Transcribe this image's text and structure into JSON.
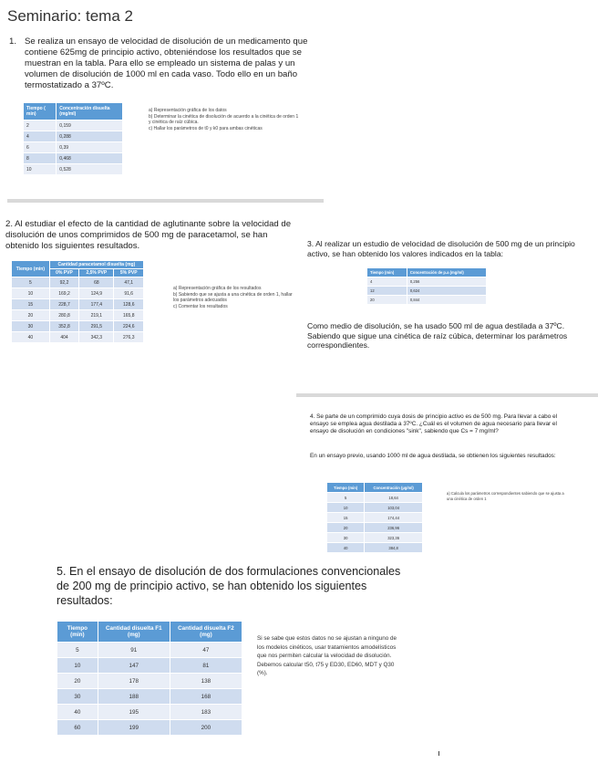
{
  "title": "Seminario: tema 2",
  "p1": {
    "number": "1.",
    "text": "Se realiza un ensayo de velocidad de disolución de un medicamento que contiene 625mg de principio activo, obteniéndose los resultados que se muestran en la tabla. Para ello se empleado un sistema de palas y un volumen de disolución de 1000 ml en cada vaso. Todo ello en un baño termostatizado a 37ºC.",
    "table": {
      "headers": [
        "Tiempo ( min)",
        "Concentración disuelta (mg/ml)"
      ],
      "rows": [
        [
          "2",
          "0,159"
        ],
        [
          "4",
          "0,288"
        ],
        [
          "6",
          "0,39"
        ],
        [
          "8",
          "0,468"
        ],
        [
          "10",
          "0,528"
        ]
      ]
    },
    "questions": [
      "a)  Representación gráfica de los datos",
      "b)  Determinar la cinética de disolución de acuerdo a la cinética de orden 1 y cinética de raíz cúbica.",
      "c)  Hallar los parámetros de t0 y k0 para ambas cinéticas"
    ]
  },
  "p2": {
    "text": "2. Al estudiar el efecto de la cantidad de aglutinante sobre la velocidad de disolución de unos comprimidos de 500 mg de paracetamol, se han obtenido los siguientes resultados.",
    "table": {
      "header_time": "Tiempo (min)",
      "header_group": "Cantidad paracetamol disuelta (mg)",
      "subheaders": [
        "0% PVP",
        "2,5% PVP",
        "5% PVP"
      ],
      "rows": [
        [
          "5",
          "92,2",
          "68",
          "47,1"
        ],
        [
          "10",
          "169,2",
          "124,9",
          "91,6"
        ],
        [
          "15",
          "228,7",
          "177,4",
          "128,6"
        ],
        [
          "20",
          "280,8",
          "219,1",
          "165,8"
        ],
        [
          "30",
          "352,8",
          "291,5",
          "224,6"
        ],
        [
          "40",
          "404",
          "342,3",
          "276,3"
        ]
      ]
    },
    "questions": [
      "a)  Representación gráfica de los resultados",
      "b)  Sabiendo que se ajusta a una cinética de orden 1, hallar los parámetros adecuados",
      "c)  Comentar los resultados"
    ]
  },
  "p3": {
    "text": "3. Al realizar un estudio de velocidad de disolución de 500 mg de un principio activo, se han obtenido los valores indicados en la tabla:",
    "table": {
      "headers": [
        "Tiempo (min)",
        "Concentración de p.a (mg/ml)"
      ],
      "rows": [
        [
          "4",
          "0,256"
        ],
        [
          "12",
          "0,624"
        ],
        [
          "20",
          "0,844"
        ]
      ]
    },
    "text2": "Como medio de disolución, se ha usado 500 ml de agua destilada a 37ºC. Sabiendo que sigue una cinética de raíz cúbica, determinar los parámetros correspondientes."
  },
  "p4": {
    "text": "4. Se parte de un comprimido cuya dosis de principio activo es de 500 mg. Para llevar a cabo el ensayo se emplea agua destilada a 37ºC. ¿Cuál es el volumen de agua necesario para llevar el ensayo de disolución en condiciones \"sink\", sabiendo que Cs = 7 mg/ml?",
    "text2": "En un ensayo previo, usando 1000 ml de agua destilada, se obtienen los siguientes resultados:",
    "table": {
      "headers": [
        "Tiempo (min)",
        "Concentración (µg/ml)"
      ],
      "rows": [
        [
          "5",
          "18,64"
        ],
        [
          "10",
          "103,04"
        ],
        [
          "15",
          "174,44"
        ],
        [
          "20",
          "236,96"
        ],
        [
          "30",
          "323,36"
        ],
        [
          "40",
          "384,8"
        ]
      ]
    },
    "question": "a) Calcula los parámetros correspondientes sabiendo que se ajusta a una cinética de orden 1"
  },
  "p5": {
    "text": "5. En el ensayo de disolución de dos formulaciones convencionales de 200 mg de principio activo, se han obtenido los siguientes resultados:",
    "table": {
      "headers": [
        "Tiempo (min)",
        "Cantidad disuelta F1 (mg)",
        "Cantidad disuelta F2 (mg)"
      ],
      "rows": [
        [
          "5",
          "91",
          "47"
        ],
        [
          "10",
          "147",
          "81"
        ],
        [
          "20",
          "178",
          "138"
        ],
        [
          "30",
          "188",
          "168"
        ],
        [
          "40",
          "195",
          "183"
        ],
        [
          "60",
          "199",
          "200"
        ]
      ]
    },
    "text2": "Si se sabe que estos datos no se ajustan a ninguno de los modelos cinéticos, usar tratamientos amodelísticos que nos permiten calcular la velocidad de disolución. Debemos calcular t50, t75 y ED30, ED60, MDT y Q30 (%)."
  }
}
